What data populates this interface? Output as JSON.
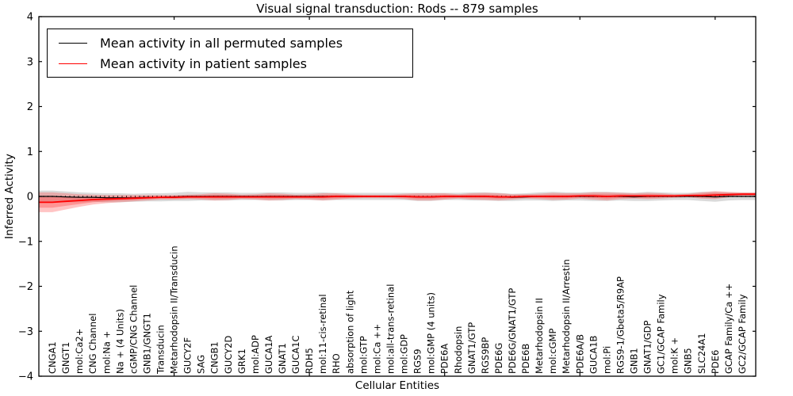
{
  "figure": {
    "title": "Visual signal transduction: Rods -- 879 samples",
    "xlabel": "Cellular Entities",
    "ylabel": "Inferred Activity"
  },
  "legend": {
    "items": [
      {
        "label": "Mean activity in all permuted samples",
        "color": "#000000"
      },
      {
        "label": "Mean activity in patient samples",
        "color": "#ff0000"
      }
    ]
  },
  "chart_data": {
    "type": "line",
    "title": "Visual signal transduction: Rods -- 879 samples",
    "xlabel": "Cellular Entities",
    "ylabel": "Inferred Activity",
    "ylim": [
      -4,
      4
    ],
    "yticks": [
      -4,
      -3,
      -2,
      -1,
      0,
      1,
      2,
      3,
      4
    ],
    "ytick_labels": [
      "−4",
      "−3",
      "−2",
      "−1",
      "0",
      "1",
      "2",
      "3",
      "4"
    ],
    "xtick_positions": [
      10,
      20,
      30,
      40,
      50
    ],
    "grid": false,
    "legend_position": "upper left",
    "zero_line": {
      "y": 0,
      "style": "dotted",
      "color": "#000000"
    },
    "categories": [
      "CNGA1",
      "GNGT1",
      "mol:Ca2+",
      "CNG Channel",
      "mol:Na +",
      "Na + (4 Units)",
      "cGMP/CNG Channel",
      "GNB1/GNGT1",
      "Transducin",
      "Metarhodopsin II/Transducin",
      "GUCY2F",
      "SAG",
      "CNGB1",
      "GUCY2D",
      "GRK1",
      "mol:ADP",
      "GUCA1A",
      "GNAT1",
      "GUCA1C",
      "RDH5",
      "mol:11-cis-retinal",
      "RHO",
      "absorption of light",
      "mol:GTP",
      "mol:Ca ++",
      "mol:all-trans-retinal",
      "mol:GDP",
      "RGS9",
      "mol:GMP (4 units)",
      "PDE6A",
      "Rhodopsin",
      "GNAT1/GTP",
      "RGS9BP",
      "PDE6G",
      "PDE6G/GNAT1/GTP",
      "PDE6B",
      "Metarhodopsin II",
      "mol:cGMP",
      "Metarhodopsin II/Arrestin",
      "PDE6A/B",
      "GUCA1B",
      "mol:Pi",
      "RGS9-1/Gbeta5/R9AP",
      "GNB1",
      "GNAT1/GDP",
      "GC1/GCAP Family",
      "mol:K +",
      "GNB5",
      "SLC24A1",
      "PDE6",
      "GCAP Family/Ca ++",
      "GC2/GCAP Family"
    ],
    "series": [
      {
        "name": "Mean activity in all permuted samples",
        "color": "#000000",
        "band_color": "rgba(150,150,150,0.35)",
        "values": [
          0,
          -0.01,
          -0.02,
          -0.02,
          -0.03,
          -0.03,
          -0.03,
          -0.02,
          -0.02,
          -0.01,
          0,
          0,
          0,
          0,
          0,
          0,
          0,
          0,
          0,
          0,
          0,
          0,
          0,
          0,
          0,
          0,
          0,
          -0.01,
          -0.01,
          0,
          0,
          0,
          0,
          -0.01,
          -0.02,
          -0.01,
          0,
          0,
          0,
          0,
          0,
          0,
          0,
          -0.01,
          0,
          0,
          0,
          0,
          0,
          -0.01,
          0,
          0
        ],
        "std": [
          0.13,
          0.12,
          0.11,
          0.1,
          0.1,
          0.1,
          0.09,
          0.09,
          0.09,
          0.09,
          0.1,
          0.09,
          0.09,
          0.09,
          0.08,
          0.08,
          0.09,
          0.09,
          0.08,
          0.08,
          0.09,
          0.08,
          0.08,
          0.08,
          0.08,
          0.08,
          0.08,
          0.09,
          0.09,
          0.08,
          0.08,
          0.09,
          0.09,
          0.09,
          0.08,
          0.08,
          0.09,
          0.1,
          0.09,
          0.09,
          0.1,
          0.1,
          0.09,
          0.09,
          0.1,
          0.09,
          0.08,
          0.08,
          0.1,
          0.11,
          0.09,
          0.08
        ]
      },
      {
        "name": "Mean activity in patient samples",
        "color": "#ff0000",
        "band_color": "rgba(255,60,60,0.30)",
        "band_inner_color": "rgba(255,60,60,0.35)",
        "values": [
          -0.13,
          -0.11,
          -0.09,
          -0.07,
          -0.06,
          -0.05,
          -0.04,
          -0.03,
          -0.02,
          -0.02,
          -0.01,
          -0.01,
          -0.01,
          -0.01,
          -0.01,
          -0.01,
          -0.01,
          -0.01,
          -0.01,
          -0.01,
          -0.01,
          0,
          0,
          0,
          0,
          0,
          0,
          -0.01,
          -0.01,
          0,
          0,
          0,
          0,
          -0.01,
          -0.01,
          0,
          0,
          0,
          0,
          0.01,
          0.01,
          0,
          0.01,
          0.01,
          0.01,
          0.01,
          0.01,
          0.02,
          0.02,
          0.03,
          0.04,
          0.05
        ],
        "std": [
          0.22,
          0.18,
          0.14,
          0.11,
          0.09,
          0.08,
          0.07,
          0.06,
          0.05,
          0.05,
          0.05,
          0.06,
          0.08,
          0.07,
          0.05,
          0.06,
          0.08,
          0.07,
          0.05,
          0.06,
          0.08,
          0.07,
          0.05,
          0.04,
          0.04,
          0.04,
          0.06,
          0.08,
          0.08,
          0.07,
          0.05,
          0.07,
          0.08,
          0.08,
          0.06,
          0.05,
          0.06,
          0.08,
          0.07,
          0.06,
          0.08,
          0.09,
          0.07,
          0.06,
          0.07,
          0.06,
          0.04,
          0.04,
          0.07,
          0.09,
          0.06,
          0.04
        ],
        "std_inner": [
          0.12,
          0.1,
          0.08,
          0.06,
          0.05,
          0.04,
          0.04,
          0.03,
          0.03,
          0.03,
          0.03,
          0.03,
          0.04,
          0.04,
          0.03,
          0.03,
          0.04,
          0.04,
          0.03,
          0.03,
          0.04,
          0.04,
          0.03,
          0.02,
          0.02,
          0.02,
          0.03,
          0.04,
          0.04,
          0.04,
          0.03,
          0.04,
          0.04,
          0.04,
          0.03,
          0.03,
          0.03,
          0.04,
          0.04,
          0.03,
          0.04,
          0.05,
          0.04,
          0.03,
          0.04,
          0.03,
          0.02,
          0.02,
          0.04,
          0.05,
          0.03,
          0.02
        ]
      }
    ]
  }
}
